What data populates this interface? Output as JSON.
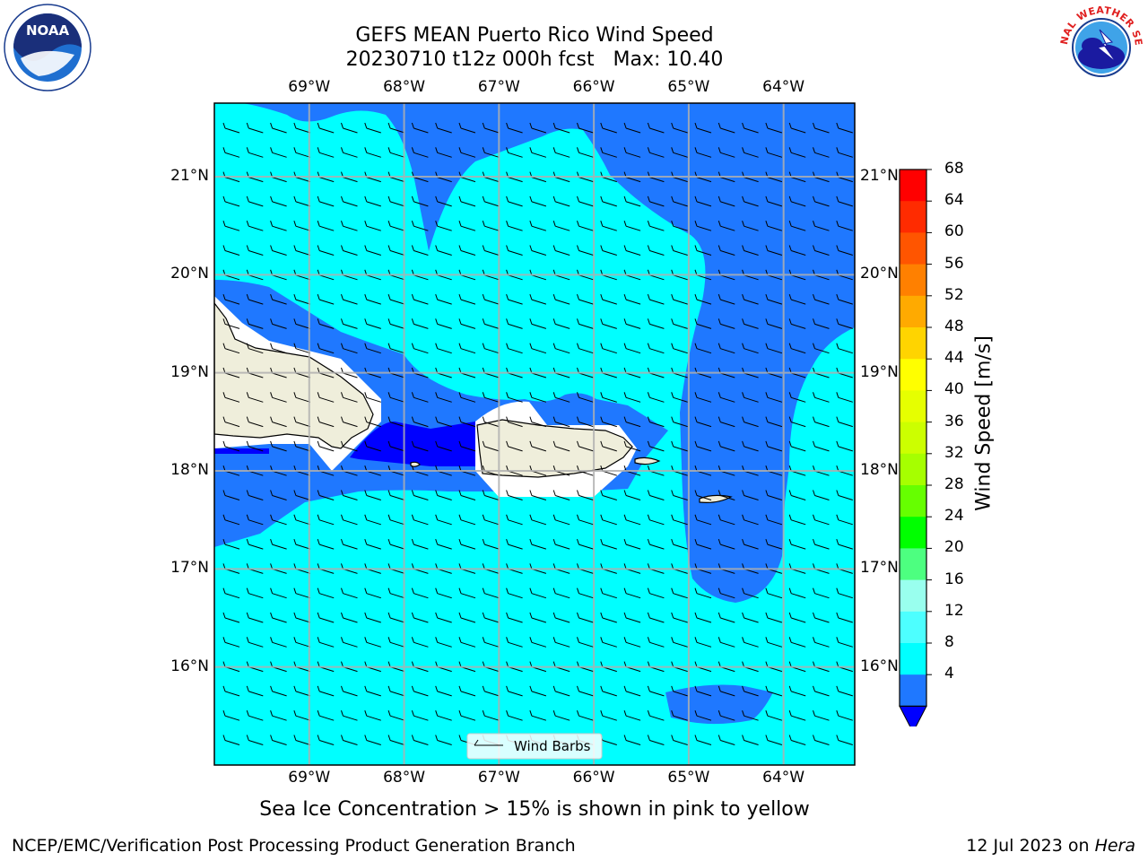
{
  "title": {
    "line1": "GEFS MEAN Puerto Rico Wind Speed",
    "line2": "20230710 t12z 000h fcst   Max: 10.40"
  },
  "logos": {
    "noaa": {
      "icon": "noaa-logo",
      "text": "NOAA"
    },
    "nws": {
      "icon": "nws-logo",
      "text": "NATIONAL WEATHER SERVICE"
    }
  },
  "map": {
    "lon_labels": [
      "69°W",
      "68°W",
      "67°W",
      "66°W",
      "65°W",
      "64°W"
    ],
    "lat_labels": [
      "21°N",
      "20°N",
      "19°N",
      "18°N",
      "17°N",
      "16°N"
    ],
    "lon_range": [
      -70,
      -63.25
    ],
    "lat_range": [
      15,
      21.75
    ],
    "colors": {
      "band_4_8": "#1f78ff",
      "band_8_12": "#00ffff",
      "below_4": "#0000ff",
      "land": "#efeedb",
      "masked": "#ffffff"
    },
    "legend": {
      "label": "Wind Barbs"
    }
  },
  "colorbar": {
    "label": "Wind Speed [m/s]",
    "ticks": [
      "68",
      "64",
      "60",
      "56",
      "52",
      "48",
      "44",
      "40",
      "36",
      "32",
      "28",
      "24",
      "20",
      "16",
      "12",
      "8",
      "4"
    ],
    "colors": [
      "#ff0000",
      "#ff2b00",
      "#ff5500",
      "#ff8000",
      "#ffaa00",
      "#ffd400",
      "#ffff00",
      "#e6ff00",
      "#ccff00",
      "#a6ff00",
      "#66ff00",
      "#00ff00",
      "#4dff80",
      "#99ffee",
      "#4dffff",
      "#00ffff",
      "#1f78ff"
    ],
    "extend_color": "#0000ff"
  },
  "caption": "Sea Ice Concentration > 15% is shown in pink to yellow",
  "footer": {
    "left": "NCEP/EMC/Verification Post Processing Product Generation Branch",
    "date": "12 Jul 2023 on ",
    "machine": "Hera"
  }
}
